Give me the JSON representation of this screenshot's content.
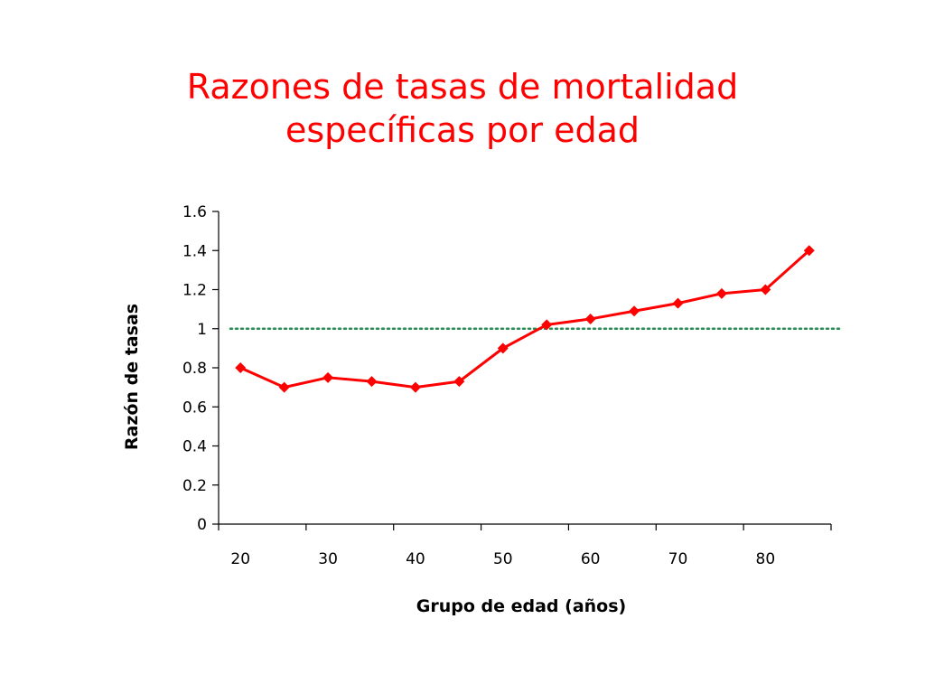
{
  "title_lines": [
    "Razones de tasas de mortalidad",
    "específicas por edad"
  ],
  "colors": {
    "title": "#ff0000",
    "series": "#ff0000",
    "reference_line": "#2e8b57",
    "axis": "#000000"
  },
  "chart_data": {
    "type": "line",
    "title": "Razones de tasas de mortalidad específicas por edad",
    "xlabel": "Grupo de edad (años)",
    "ylabel": "Razón de tasas",
    "ylim": [
      0,
      1.6
    ],
    "yticks": [
      "0",
      "0.2",
      "0.4",
      "0.6",
      "0.8",
      "1",
      "1.2",
      "1.4",
      "1.6"
    ],
    "xticks": [
      "20",
      "30",
      "40",
      "50",
      "60",
      "70",
      "80"
    ],
    "xlim": [
      17.5,
      87.5
    ],
    "grid": false,
    "reference_line": {
      "y": 1,
      "style": "dotted",
      "color": "#2e8b57"
    },
    "series": [
      {
        "x": [
          20,
          25,
          30,
          35,
          40,
          45,
          50,
          55,
          60,
          65,
          70,
          75,
          80,
          85
        ],
        "values": [
          0.8,
          0.7,
          0.75,
          0.73,
          0.7,
          0.73,
          0.9,
          1.02,
          1.05,
          1.09,
          1.13,
          1.18,
          1.2,
          1.4
        ],
        "color": "#ff0000",
        "marker": "diamond"
      }
    ]
  }
}
